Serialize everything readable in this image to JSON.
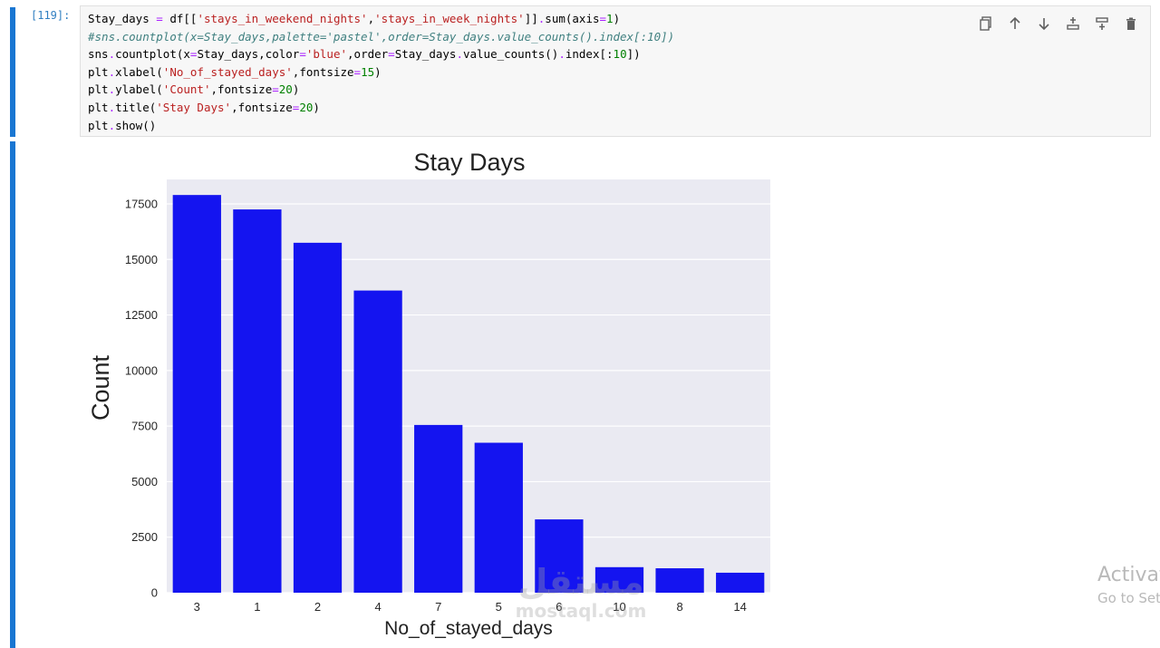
{
  "cell": {
    "prompt": "[119]:",
    "code_lines": [
      [
        {
          "t": "Stay_days "
        },
        {
          "t": "=",
          "c": "op"
        },
        {
          "t": " df[["
        },
        {
          "t": "'stays_in_weekend_nights'",
          "c": "str"
        },
        {
          "t": ","
        },
        {
          "t": "'stays_in_week_nights'",
          "c": "str"
        },
        {
          "t": "]]"
        },
        {
          "t": ".",
          "c": "op"
        },
        {
          "t": "sum(axis"
        },
        {
          "t": "=",
          "c": "op"
        },
        {
          "t": "1",
          "c": "num"
        },
        {
          "t": ")"
        }
      ],
      [
        {
          "t": "#sns.countplot(x=Stay_days,palette='pastel',order=Stay_days.value_counts().index[:10])",
          "c": "com"
        }
      ],
      [
        {
          "t": "sns"
        },
        {
          "t": ".",
          "c": "op"
        },
        {
          "t": "countplot(x"
        },
        {
          "t": "=",
          "c": "op"
        },
        {
          "t": "Stay_days,color"
        },
        {
          "t": "=",
          "c": "op"
        },
        {
          "t": "'blue'",
          "c": "str"
        },
        {
          "t": ",order"
        },
        {
          "t": "=",
          "c": "op"
        },
        {
          "t": "Stay_days"
        },
        {
          "t": ".",
          "c": "op"
        },
        {
          "t": "value_counts()"
        },
        {
          "t": ".",
          "c": "op"
        },
        {
          "t": "index[:"
        },
        {
          "t": "10",
          "c": "num"
        },
        {
          "t": "])"
        }
      ],
      [
        {
          "t": "plt"
        },
        {
          "t": ".",
          "c": "op"
        },
        {
          "t": "xlabel("
        },
        {
          "t": "'No_of_stayed_days'",
          "c": "str"
        },
        {
          "t": ",fontsize"
        },
        {
          "t": "=",
          "c": "op"
        },
        {
          "t": "15",
          "c": "num"
        },
        {
          "t": ")"
        }
      ],
      [
        {
          "t": "plt"
        },
        {
          "t": ".",
          "c": "op"
        },
        {
          "t": "ylabel("
        },
        {
          "t": "'Count'",
          "c": "str"
        },
        {
          "t": ",fontsize"
        },
        {
          "t": "=",
          "c": "op"
        },
        {
          "t": "20",
          "c": "num"
        },
        {
          "t": ")"
        }
      ],
      [
        {
          "t": "plt"
        },
        {
          "t": ".",
          "c": "op"
        },
        {
          "t": "title("
        },
        {
          "t": "'Stay Days'",
          "c": "str"
        },
        {
          "t": ",fontsize"
        },
        {
          "t": "=",
          "c": "op"
        },
        {
          "t": "20",
          "c": "num"
        },
        {
          "t": ")"
        }
      ],
      [
        {
          "t": "plt"
        },
        {
          "t": ".",
          "c": "op"
        },
        {
          "t": "show()"
        }
      ]
    ]
  },
  "toolbar": {
    "icons": [
      "duplicate-icon",
      "arrow-up-icon",
      "arrow-down-icon",
      "insert-above-icon",
      "insert-below-icon",
      "trash-icon"
    ]
  },
  "chart_data": {
    "type": "bar",
    "title": "Stay Days",
    "xlabel": "No_of_stayed_days",
    "ylabel": "Count",
    "categories": [
      "3",
      "1",
      "2",
      "4",
      "7",
      "5",
      "6",
      "10",
      "8",
      "14"
    ],
    "values": [
      17900,
      17250,
      15750,
      13600,
      7550,
      6750,
      3300,
      1150,
      1100,
      900
    ],
    "ylim": [
      0,
      18600
    ],
    "yticks": [
      0,
      2500,
      5000,
      7500,
      10000,
      12500,
      15000,
      17500
    ],
    "grid": true,
    "bar_color": "#1414f0",
    "background": "#eaeaf2"
  },
  "watermark": {
    "line1": "Activat",
    "line2": "Go to Set"
  },
  "brand": {
    "arabic": "مستقل",
    "latin": "mostaql.com"
  },
  "colors": {
    "cell_accent": "#1976d2",
    "prompt": "#307fc1"
  }
}
